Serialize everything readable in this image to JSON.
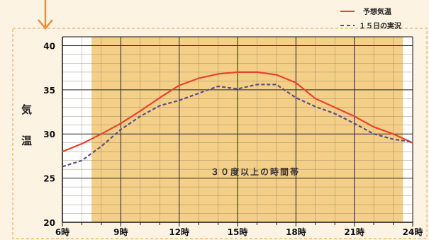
{
  "chart_data": {
    "type": "line",
    "title": "",
    "ylabel": "気温",
    "ylim": [
      20,
      41
    ],
    "yticks": [
      20,
      25,
      30,
      35,
      40
    ],
    "xlim": [
      6,
      24
    ],
    "xticks": [
      6,
      9,
      12,
      15,
      18,
      21,
      24
    ],
    "xtick_labels": [
      "6時",
      "9時",
      "12時",
      "15時",
      "18時",
      "21時",
      "24時"
    ],
    "highlight_range": [
      7.5,
      23.5
    ],
    "highlight_color": "#f4cf88",
    "annotation": "３０度以上の時間帯",
    "grid": true,
    "legend_position": "top-right",
    "series": [
      {
        "name": "予想気温",
        "style": "solid",
        "color": "#e8432f",
        "x": [
          6,
          7,
          8,
          9,
          10,
          11,
          12,
          13,
          14,
          15,
          16,
          17,
          18,
          19,
          20,
          21,
          22,
          23,
          24
        ],
        "y": [
          28.0,
          28.9,
          30.0,
          31.2,
          32.6,
          34.1,
          35.5,
          36.3,
          36.8,
          37.0,
          37.0,
          36.7,
          35.8,
          34.0,
          33.0,
          32.0,
          30.8,
          30.0,
          29.0
        ]
      },
      {
        "name": "１５日の実況",
        "style": "dashed",
        "color": "#5a4f86",
        "x": [
          6,
          7,
          8,
          9,
          10,
          11,
          12,
          13,
          14,
          15,
          16,
          17,
          18,
          19,
          20,
          21,
          22,
          23,
          24
        ],
        "y": [
          26.3,
          27.0,
          28.6,
          30.5,
          32.0,
          33.2,
          33.8,
          34.6,
          35.4,
          35.1,
          35.6,
          35.6,
          34.1,
          33.1,
          32.3,
          31.2,
          30.0,
          29.4,
          29.1
        ]
      }
    ]
  }
}
